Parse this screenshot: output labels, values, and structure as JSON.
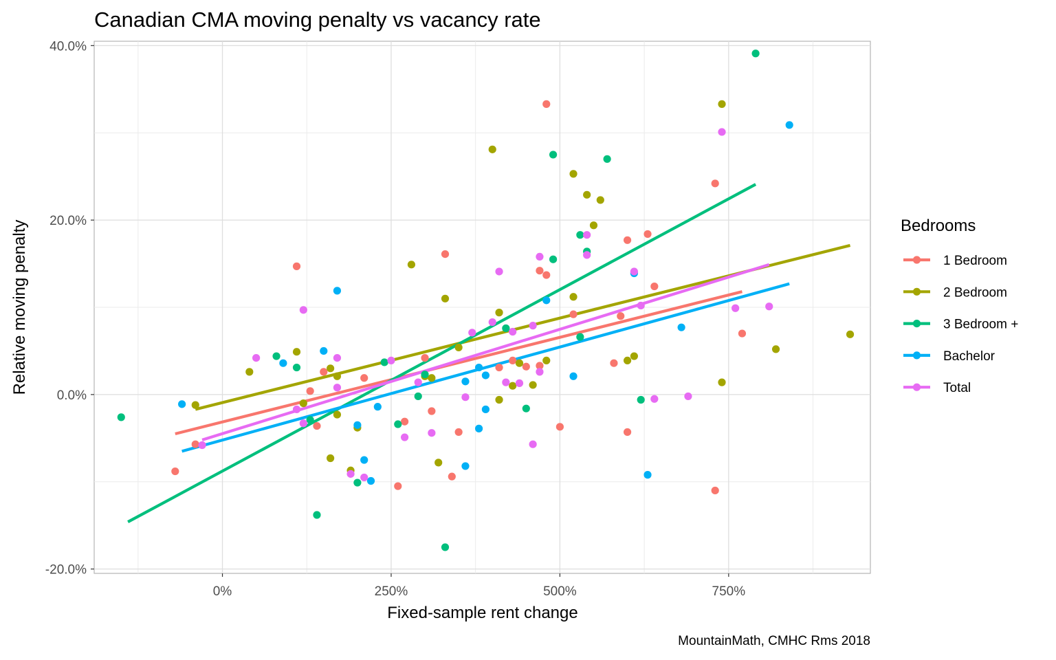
{
  "chart_data": {
    "type": "scatter",
    "title": "Canadian CMA moving penalty vs vacancy rate",
    "xlabel": "Fixed-sample rent change",
    "ylabel": "Relative moving penalty",
    "caption": "MountainMath, CMHC Rms 2018",
    "xlim": [
      -1.9,
      9.6
    ],
    "ylim": [
      -0.205,
      0.405
    ],
    "x_ticks": [
      0,
      2.5,
      5,
      7.5
    ],
    "x_tick_labels": [
      "0%",
      "250%",
      "500%",
      "750%"
    ],
    "y_ticks": [
      -0.2,
      0,
      0.2,
      0.4
    ],
    "y_tick_labels": [
      "-20.0%",
      "0.0%",
      "20.0%",
      "40.0%"
    ],
    "grid": true,
    "legend": {
      "title": "Bedrooms",
      "position": "right"
    },
    "series": [
      {
        "name": "1 Bedroom",
        "color": "#F8766D",
        "points": [
          [
            -0.7,
            -0.088
          ],
          [
            -0.4,
            -0.057
          ],
          [
            1.1,
            0.147
          ],
          [
            1.3,
            0.004
          ],
          [
            1.4,
            -0.036
          ],
          [
            1.5,
            0.026
          ],
          [
            2.1,
            0.019
          ],
          [
            2.6,
            -0.105
          ],
          [
            2.7,
            -0.031
          ],
          [
            3.0,
            0.042
          ],
          [
            3.1,
            -0.019
          ],
          [
            3.3,
            0.161
          ],
          [
            3.4,
            -0.094
          ],
          [
            3.5,
            -0.043
          ],
          [
            4.1,
            0.031
          ],
          [
            4.3,
            0.039
          ],
          [
            4.5,
            0.032
          ],
          [
            4.7,
            0.142
          ],
          [
            4.7,
            0.033
          ],
          [
            4.8,
            0.333
          ],
          [
            4.8,
            0.137
          ],
          [
            5.0,
            -0.037
          ],
          [
            5.2,
            0.092
          ],
          [
            5.8,
            0.036
          ],
          [
            5.9,
            0.09
          ],
          [
            6.0,
            0.177
          ],
          [
            6.0,
            -0.043
          ],
          [
            6.3,
            0.184
          ],
          [
            6.4,
            0.124
          ],
          [
            7.3,
            0.242
          ],
          [
            7.3,
            -0.11
          ],
          [
            7.7,
            0.07
          ]
        ],
        "trend": [
          [
            -0.7,
            -0.045
          ],
          [
            7.7,
            0.118
          ]
        ]
      },
      {
        "name": "2 Bedroom",
        "color": "#A3A500",
        "points": [
          [
            -0.4,
            -0.012
          ],
          [
            0.4,
            0.026
          ],
          [
            1.1,
            0.049
          ],
          [
            1.2,
            -0.01
          ],
          [
            1.6,
            0.03
          ],
          [
            1.6,
            -0.073
          ],
          [
            1.7,
            0.021
          ],
          [
            1.7,
            -0.023
          ],
          [
            1.9,
            -0.087
          ],
          [
            2.0,
            -0.038
          ],
          [
            2.8,
            0.149
          ],
          [
            3.0,
            0.021
          ],
          [
            3.1,
            0.019
          ],
          [
            3.2,
            -0.078
          ],
          [
            3.3,
            0.11
          ],
          [
            3.5,
            0.054
          ],
          [
            4.0,
            0.281
          ],
          [
            4.1,
            0.094
          ],
          [
            4.1,
            -0.006
          ],
          [
            4.3,
            0.01
          ],
          [
            4.4,
            0.036
          ],
          [
            4.6,
            0.011
          ],
          [
            4.8,
            0.039
          ],
          [
            5.2,
            0.253
          ],
          [
            5.2,
            0.112
          ],
          [
            5.4,
            0.229
          ],
          [
            5.5,
            0.194
          ],
          [
            5.6,
            0.223
          ],
          [
            6.0,
            0.039
          ],
          [
            6.1,
            0.044
          ],
          [
            7.4,
            0.333
          ],
          [
            7.4,
            0.014
          ],
          [
            8.2,
            0.052
          ],
          [
            9.3,
            0.069
          ]
        ],
        "trend": [
          [
            -0.4,
            -0.017
          ],
          [
            9.3,
            0.171
          ]
        ]
      },
      {
        "name": "3 Bedroom +",
        "color": "#00BF7D",
        "points": [
          [
            -1.5,
            -0.026
          ],
          [
            0.8,
            0.044
          ],
          [
            1.1,
            0.031
          ],
          [
            1.3,
            -0.029
          ],
          [
            1.4,
            -0.138
          ],
          [
            2.0,
            -0.101
          ],
          [
            2.4,
            0.037
          ],
          [
            2.6,
            -0.034
          ],
          [
            2.9,
            -0.002
          ],
          [
            3.0,
            0.023
          ],
          [
            3.3,
            -0.175
          ],
          [
            4.2,
            0.076
          ],
          [
            4.5,
            -0.016
          ],
          [
            4.9,
            0.275
          ],
          [
            4.9,
            0.155
          ],
          [
            5.3,
            0.183
          ],
          [
            5.3,
            0.066
          ],
          [
            5.4,
            0.164
          ],
          [
            5.7,
            0.27
          ],
          [
            6.2,
            -0.006
          ],
          [
            7.9,
            0.391
          ]
        ],
        "trend": [
          [
            -1.4,
            -0.146
          ],
          [
            7.9,
            0.241
          ]
        ]
      },
      {
        "name": "Bachelor",
        "color": "#00B0F6",
        "points": [
          [
            -0.6,
            -0.011
          ],
          [
            0.9,
            0.036
          ],
          [
            1.5,
            0.05
          ],
          [
            1.7,
            0.119
          ],
          [
            2.0,
            -0.035
          ],
          [
            2.1,
            -0.075
          ],
          [
            2.2,
            -0.099
          ],
          [
            2.3,
            -0.014
          ],
          [
            3.6,
            0.015
          ],
          [
            3.6,
            -0.082
          ],
          [
            3.8,
            0.031
          ],
          [
            3.8,
            -0.039
          ],
          [
            3.9,
            0.022
          ],
          [
            3.9,
            -0.017
          ],
          [
            4.8,
            0.108
          ],
          [
            5.2,
            0.021
          ],
          [
            6.1,
            0.139
          ],
          [
            6.3,
            -0.092
          ],
          [
            6.8,
            0.077
          ],
          [
            8.4,
            0.309
          ]
        ],
        "trend": [
          [
            -0.6,
            -0.065
          ],
          [
            8.4,
            0.127
          ]
        ]
      },
      {
        "name": "Total",
        "color": "#E76BF3",
        "points": [
          [
            -0.3,
            -0.058
          ],
          [
            0.5,
            0.042
          ],
          [
            1.1,
            -0.017
          ],
          [
            1.2,
            0.097
          ],
          [
            1.2,
            -0.033
          ],
          [
            1.7,
            0.042
          ],
          [
            1.7,
            0.008
          ],
          [
            1.9,
            -0.091
          ],
          [
            2.1,
            -0.095
          ],
          [
            2.5,
            0.039
          ],
          [
            2.7,
            -0.049
          ],
          [
            2.9,
            0.014
          ],
          [
            3.1,
            -0.044
          ],
          [
            3.6,
            -0.003
          ],
          [
            3.7,
            0.071
          ],
          [
            4.0,
            0.083
          ],
          [
            4.1,
            0.141
          ],
          [
            4.2,
            0.014
          ],
          [
            4.3,
            0.072
          ],
          [
            4.4,
            0.013
          ],
          [
            4.6,
            0.079
          ],
          [
            4.6,
            -0.057
          ],
          [
            4.7,
            0.158
          ],
          [
            4.7,
            0.026
          ],
          [
            5.4,
            0.183
          ],
          [
            5.4,
            0.16
          ],
          [
            6.1,
            0.141
          ],
          [
            6.2,
            0.102
          ],
          [
            6.4,
            -0.005
          ],
          [
            6.9,
            -0.002
          ],
          [
            7.4,
            0.301
          ],
          [
            7.6,
            0.099
          ],
          [
            8.1,
            0.101
          ]
        ],
        "trend": [
          [
            -0.3,
            -0.052
          ],
          [
            8.1,
            0.149
          ]
        ]
      }
    ]
  }
}
